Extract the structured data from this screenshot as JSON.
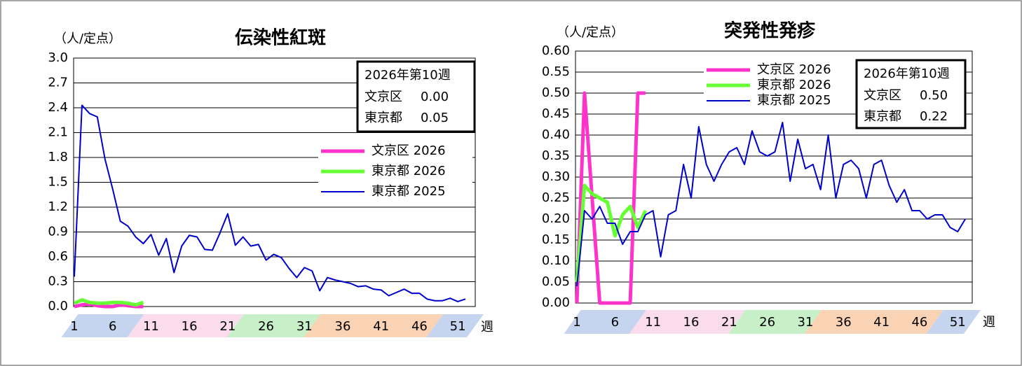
{
  "chart_data": [
    {
      "type": "line",
      "title": "伝染性紅斑",
      "y_label": "（人/定点）",
      "x_label": "週",
      "x": [
        1,
        2,
        3,
        4,
        5,
        6,
        7,
        8,
        9,
        10,
        11,
        12,
        13,
        14,
        15,
        16,
        17,
        18,
        19,
        20,
        21,
        22,
        23,
        24,
        25,
        26,
        27,
        28,
        29,
        30,
        31,
        32,
        33,
        34,
        35,
        36,
        37,
        38,
        39,
        40,
        41,
        42,
        43,
        44,
        45,
        46,
        47,
        48,
        49,
        50,
        51,
        52
      ],
      "xlim": [
        1,
        53
      ],
      "xticks": [
        1,
        6,
        11,
        16,
        21,
        26,
        31,
        36,
        41,
        46,
        51
      ],
      "ylim": [
        0,
        3
      ],
      "yticks": [
        {
          "value": 0,
          "label": "0.0"
        },
        0.3,
        0.6,
        0.9,
        1.2,
        1.5,
        1.8,
        2.1,
        2.4,
        2.7,
        {
          "value": 3,
          "label": "3.0"
        }
      ],
      "grid": true,
      "legend": "right",
      "series": [
        {
          "name": "文京区 2026",
          "color": "#ff33cc",
          "values": [
            0,
            0.02,
            0.03,
            0.01,
            0,
            0,
            0.02,
            0.01,
            0,
            0,
            null,
            null,
            null,
            null,
            null,
            null,
            null,
            null,
            null,
            null,
            null,
            null,
            null,
            null,
            null,
            null,
            null,
            null,
            null,
            null,
            null,
            null,
            null,
            null,
            null,
            null,
            null,
            null,
            null,
            null,
            null,
            null,
            null,
            null,
            null,
            null,
            null,
            null,
            null,
            null,
            null,
            null
          ]
        },
        {
          "name": "東京都 2026",
          "color": "#66ff33",
          "values": [
            0.04,
            0.08,
            0.05,
            0.04,
            0.04,
            0.05,
            0.05,
            0.04,
            0.02,
            0.05,
            null,
            null,
            null,
            null,
            null,
            null,
            null,
            null,
            null,
            null,
            null,
            null,
            null,
            null,
            null,
            null,
            null,
            null,
            null,
            null,
            null,
            null,
            null,
            null,
            null,
            null,
            null,
            null,
            null,
            null,
            null,
            null,
            null,
            null,
            null,
            null,
            null,
            null,
            null,
            null,
            null,
            null
          ]
        },
        {
          "name": "東京都 2025",
          "color": "#0000cc",
          "values": [
            0.36,
            2.43,
            2.33,
            2.29,
            1.78,
            1.42,
            1.03,
            0.97,
            0.84,
            0.76,
            0.87,
            0.62,
            0.82,
            0.41,
            0.73,
            0.86,
            0.84,
            0.69,
            0.68,
            0.89,
            1.12,
            0.74,
            0.84,
            0.73,
            0.75,
            0.56,
            0.63,
            0.59,
            0.46,
            0.35,
            0.47,
            0.43,
            0.19,
            0.35,
            0.32,
            0.3,
            0.28,
            0.24,
            0.25,
            0.21,
            0.2,
            0.13,
            0.17,
            0.21,
            0.16,
            0.16,
            0.09,
            0.07,
            0.07,
            0.1,
            0.06,
            0.09
          ]
        }
      ],
      "info_box": {
        "title": "2026年第10週",
        "labels": [
          "文京区",
          "東京都"
        ],
        "values": [
          0,
          0.05
        ],
        "value_labels": [
          "0.00",
          "0.05"
        ]
      }
    },
    {
      "type": "line",
      "title": "突発性発疹",
      "y_label": "（人/定点）",
      "x_label": "週",
      "x": [
        1,
        2,
        3,
        4,
        5,
        6,
        7,
        8,
        9,
        10,
        11,
        12,
        13,
        14,
        15,
        16,
        17,
        18,
        19,
        20,
        21,
        22,
        23,
        24,
        25,
        26,
        27,
        28,
        29,
        30,
        31,
        32,
        33,
        34,
        35,
        36,
        37,
        38,
        39,
        40,
        41,
        42,
        43,
        44,
        45,
        46,
        47,
        48,
        49,
        50,
        51,
        52
      ],
      "xlim": [
        1,
        53
      ],
      "xticks": [
        1,
        6,
        11,
        16,
        21,
        26,
        31,
        36,
        41,
        46,
        51
      ],
      "ylim": [
        0,
        0.6
      ],
      "yticks": [
        {
          "value": 0,
          "label": "0.00"
        },
        0.05,
        {
          "value": 0.1,
          "label": "0.10"
        },
        0.15,
        {
          "value": 0.2,
          "label": "0.20"
        },
        0.25,
        {
          "value": 0.3,
          "label": "0.30"
        },
        0.35,
        {
          "value": 0.4,
          "label": "0.40"
        },
        0.45,
        {
          "value": 0.5,
          "label": "0.50"
        },
        0.55,
        {
          "value": 0.6,
          "label": "0.60"
        }
      ],
      "grid": true,
      "legend": "top",
      "series": [
        {
          "name": "文京区 2026",
          "color": "#ff33cc",
          "values": [
            0,
            0.5,
            0.25,
            0,
            0,
            0,
            0,
            0,
            0.5,
            0.5,
            null,
            null,
            null,
            null,
            null,
            null,
            null,
            null,
            null,
            null,
            null,
            null,
            null,
            null,
            null,
            null,
            null,
            null,
            null,
            null,
            null,
            null,
            null,
            null,
            null,
            null,
            null,
            null,
            null,
            null,
            null,
            null,
            null,
            null,
            null,
            null,
            null,
            null,
            null,
            null,
            null,
            null
          ]
        },
        {
          "name": "東京都 2026",
          "color": "#66ff33",
          "values": [
            0.05,
            0.28,
            0.26,
            0.25,
            0.24,
            0.16,
            0.21,
            0.23,
            0.18,
            0.22,
            null,
            null,
            null,
            null,
            null,
            null,
            null,
            null,
            null,
            null,
            null,
            null,
            null,
            null,
            null,
            null,
            null,
            null,
            null,
            null,
            null,
            null,
            null,
            null,
            null,
            null,
            null,
            null,
            null,
            null,
            null,
            null,
            null,
            null,
            null,
            null,
            null,
            null,
            null,
            null,
            null,
            null
          ]
        },
        {
          "name": "東京都 2025",
          "color": "#0000cc",
          "values": [
            0.04,
            0.22,
            0.2,
            0.23,
            0.19,
            0.19,
            0.14,
            0.17,
            0.17,
            0.21,
            0.22,
            0.11,
            0.21,
            0.22,
            0.33,
            0.25,
            0.42,
            0.33,
            0.29,
            0.33,
            0.36,
            0.37,
            0.33,
            0.41,
            0.36,
            0.35,
            0.36,
            0.43,
            0.29,
            0.39,
            0.32,
            0.33,
            0.27,
            0.4,
            0.25,
            0.33,
            0.34,
            0.32,
            0.25,
            0.33,
            0.34,
            0.28,
            0.24,
            0.27,
            0.22,
            0.22,
            0.2,
            0.21,
            0.21,
            0.18,
            0.17,
            0.2
          ]
        }
      ],
      "info_box": {
        "title": "2026年第10週",
        "labels": [
          "文京区",
          "東京都"
        ],
        "values": [
          0.5,
          0.22
        ],
        "value_labels": [
          "0.50",
          "0.22"
        ]
      }
    }
  ]
}
